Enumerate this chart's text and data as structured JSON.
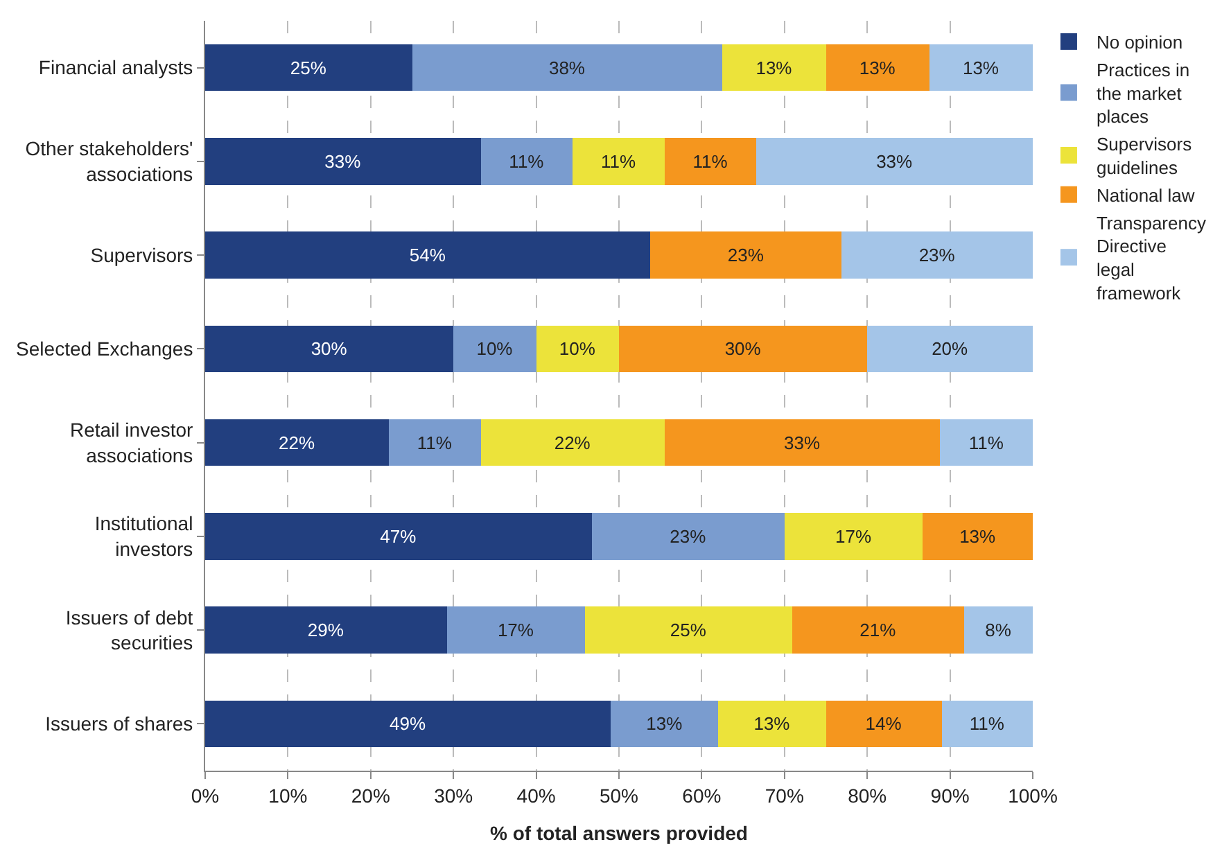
{
  "chart_data": {
    "type": "bar",
    "orientation": "horizontal",
    "stacked": true,
    "xlabel": "% of total answers provided",
    "categories": [
      "Financial analysts",
      "Other stakeholders' associations",
      "Supervisors",
      "Selected Exchanges",
      "Retail investor associations",
      "Institutional investors",
      "Issuers of debt securities",
      "Issuers of shares"
    ],
    "series": [
      {
        "name": "No opinion",
        "color": "#223f7f",
        "values": [
          25,
          33.3,
          53.8,
          30,
          22.2,
          46.7,
          29.2,
          49
        ],
        "value_labels": [
          "25%",
          "33%",
          "54%",
          "30%",
          "22%",
          "47%",
          "29%",
          "49%"
        ]
      },
      {
        "name": "Practices in the market places",
        "color": "#7a9ccf",
        "values": [
          37.5,
          11.1,
          null,
          10,
          11.1,
          23.3,
          16.7,
          13
        ],
        "value_labels": [
          "38%",
          "11%",
          null,
          "10%",
          "11%",
          "23%",
          "17%",
          "13%"
        ]
      },
      {
        "name": "Supervisors guidelines",
        "color": "#ece33a",
        "values": [
          12.5,
          11.1,
          null,
          10,
          22.2,
          16.7,
          25,
          13
        ],
        "value_labels": [
          "13%",
          "11%",
          null,
          "10%",
          "22%",
          "17%",
          "25%",
          "13%"
        ]
      },
      {
        "name": "National law",
        "color": "#f5961e",
        "values": [
          12.5,
          11.1,
          23.1,
          30,
          33.3,
          13.3,
          20.8,
          14
        ],
        "value_labels": [
          "13%",
          "11%",
          "23%",
          "30%",
          "33%",
          "13%",
          "21%",
          "14%"
        ]
      },
      {
        "name": "Transparency Directive legal framework",
        "color": "#a4c5e8",
        "values": [
          12.5,
          33.4,
          23.1,
          20,
          11.2,
          null,
          8.3,
          11
        ],
        "value_labels": [
          "13%",
          "33%",
          "23%",
          "20%",
          "11%",
          null,
          "8%",
          "11%"
        ]
      }
    ],
    "xlim": [
      0,
      100
    ],
    "xticks": [
      {
        "value": 0,
        "label": "0%"
      },
      {
        "value": 10,
        "label": "10%"
      },
      {
        "value": 20,
        "label": "20%"
      },
      {
        "value": 30,
        "label": "30%"
      },
      {
        "value": 40,
        "label": "40%"
      },
      {
        "value": 50,
        "label": "50%"
      },
      {
        "value": 60,
        "label": "60%"
      },
      {
        "value": 70,
        "label": "70%"
      },
      {
        "value": 80,
        "label": "80%"
      },
      {
        "value": 90,
        "label": "90%"
      },
      {
        "value": 100,
        "label": "100%"
      }
    ],
    "grid": "x",
    "legend": "right"
  }
}
